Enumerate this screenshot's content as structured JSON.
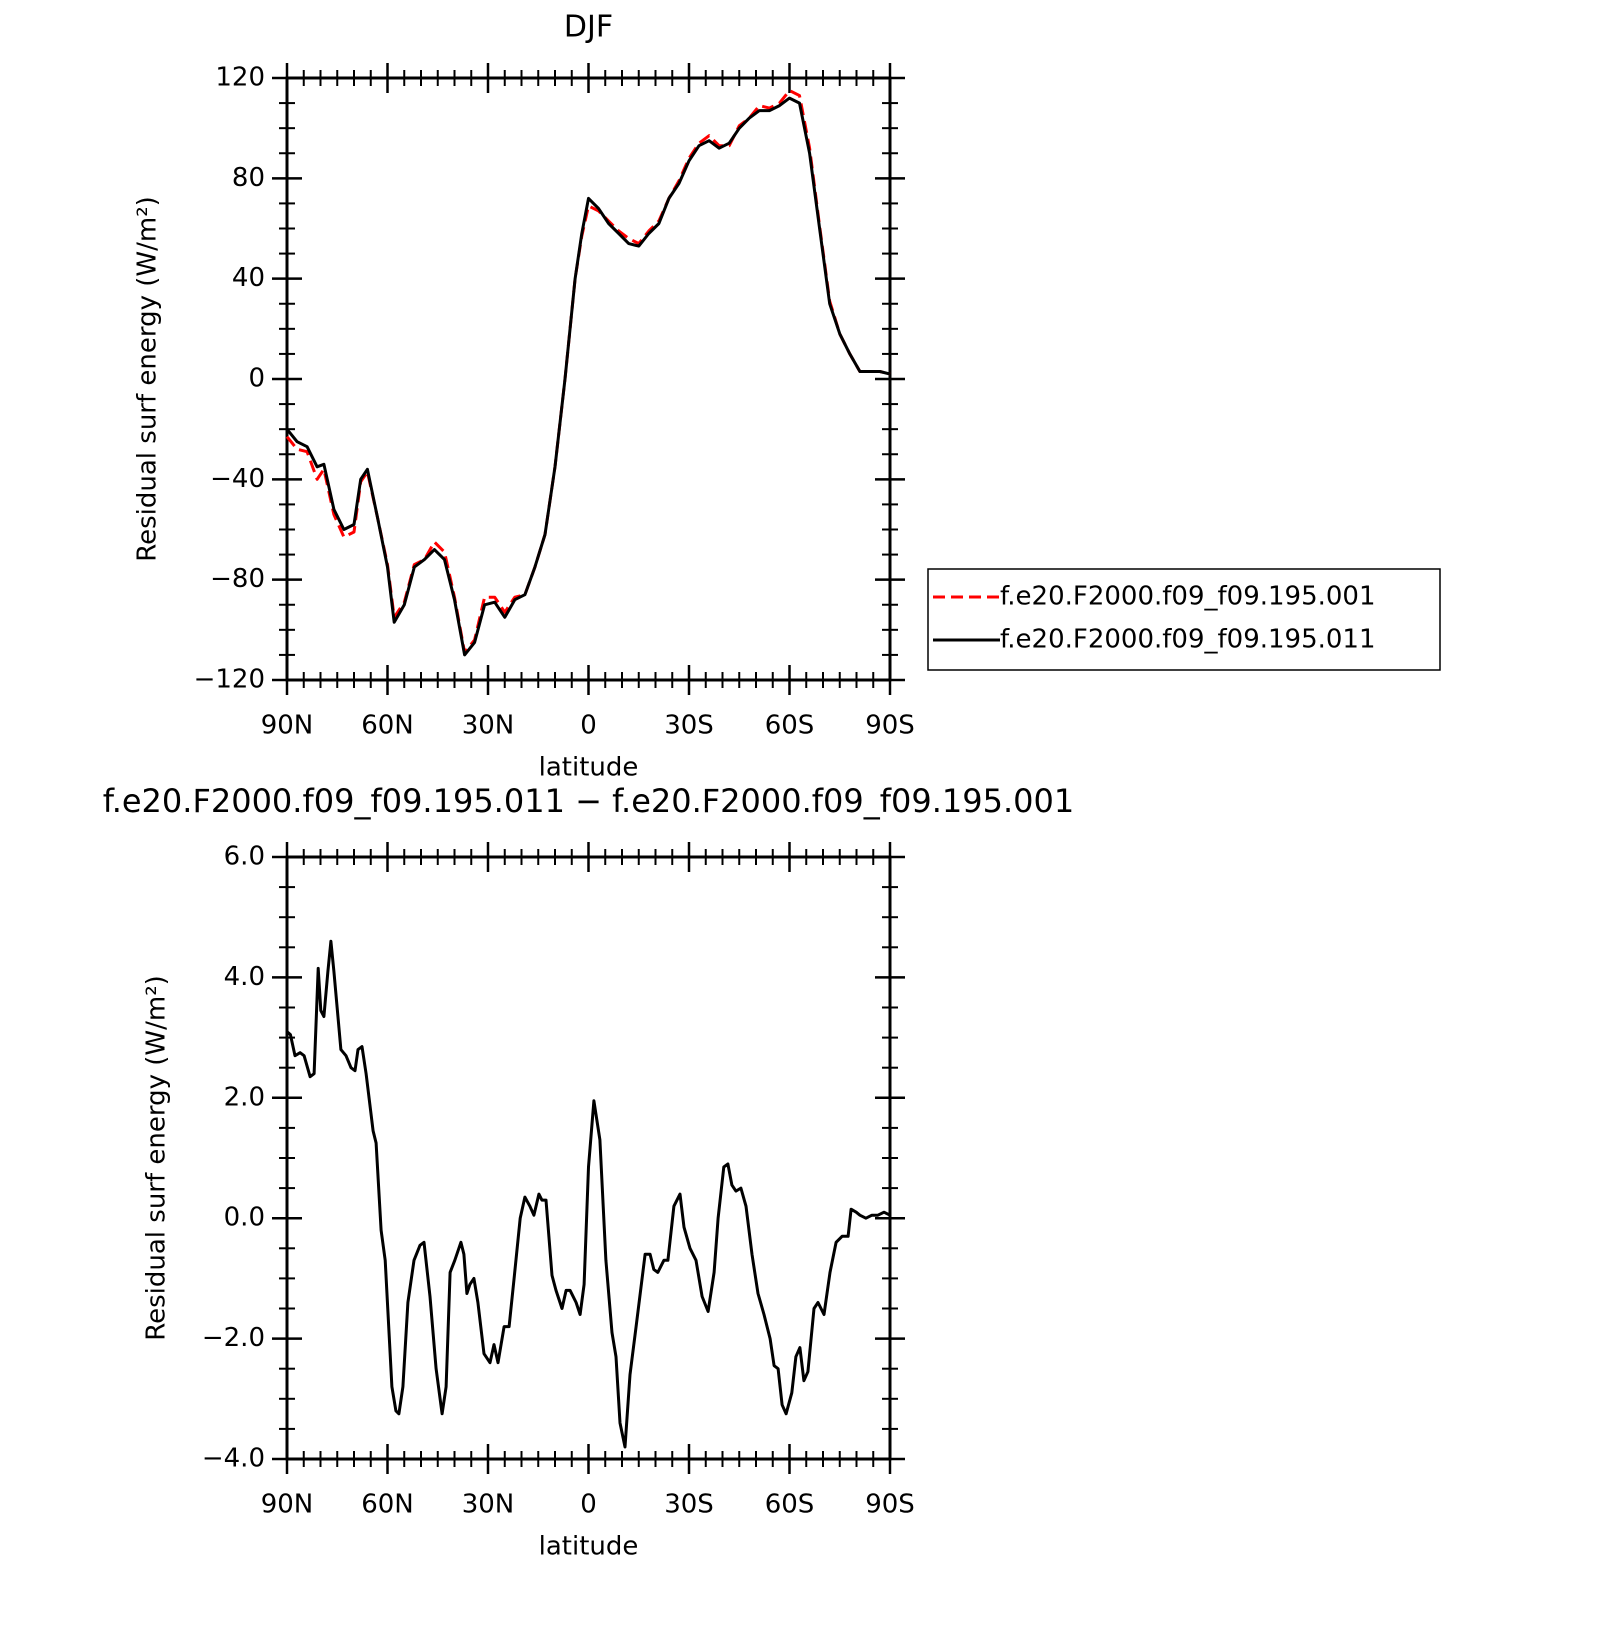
{
  "chart_data": [
    {
      "type": "line",
      "title": "DJF",
      "xlabel": "latitude",
      "ylabel": "Residual surf energy (W/m²)",
      "x": [
        90,
        87,
        84,
        81,
        79,
        76,
        73,
        70,
        68,
        66,
        63,
        60,
        58,
        55,
        52,
        49,
        46,
        43,
        40,
        37,
        34,
        31,
        28,
        25,
        22,
        19,
        16,
        13,
        10,
        7,
        4,
        2,
        0,
        -3,
        -6,
        -9,
        -12,
        -15,
        -18,
        -21,
        -24,
        -27,
        -30,
        -33,
        -36,
        -39,
        -42,
        -45,
        -48,
        -51,
        -54,
        -57,
        -60,
        -63,
        -66,
        -69,
        -72,
        -75,
        -78,
        -81,
        -84,
        -87,
        -90
      ],
      "series": [
        {
          "name": "f.e20.F2000.f09_f09.195.001",
          "color": "#ff0000",
          "dash": "dashed",
          "values": [
            -23,
            -28,
            -29,
            -40,
            -36,
            -54,
            -63,
            -61,
            -41,
            -37,
            -55,
            -74,
            -95,
            -89,
            -74,
            -72,
            -65,
            -69,
            -87,
            -109,
            -104,
            -87,
            -87,
            -93,
            -87,
            -86,
            -75,
            -62,
            -35,
            0,
            40,
            57,
            69,
            67,
            63,
            59,
            56,
            54,
            59,
            63,
            72,
            79,
            88,
            94,
            97,
            93,
            93,
            101,
            104,
            109,
            108,
            110,
            115,
            113,
            92,
            61,
            31,
            18,
            10,
            3,
            3,
            3,
            2
          ]
        },
        {
          "name": "f.e20.F2000.f09_f09.195.011",
          "color": "#000000",
          "dash": "solid",
          "values": [
            -20,
            -25,
            -27,
            -35,
            -34,
            -52,
            -60,
            -58,
            -40,
            -36,
            -55,
            -75,
            -97,
            -90,
            -75,
            -72,
            -68,
            -72,
            -88,
            -110,
            -105,
            -90,
            -89,
            -95,
            -88,
            -86,
            -75,
            -62,
            -35,
            0,
            40,
            58,
            72,
            68,
            62,
            58,
            54,
            53,
            58,
            62,
            72,
            78,
            87,
            93,
            95,
            92,
            94,
            100,
            104,
            107,
            107,
            109,
            112,
            110,
            90,
            60,
            30,
            18,
            10,
            3,
            3,
            3,
            2
          ]
        }
      ],
      "xlim": [
        90,
        -90
      ],
      "xticks": [
        {
          "value": 90,
          "label": "90N"
        },
        {
          "value": 60,
          "label": "60N"
        },
        {
          "value": 30,
          "label": "30N"
        },
        0,
        {
          "value": -30,
          "label": "30S"
        },
        {
          "value": -60,
          "label": "60S"
        },
        {
          "value": -90,
          "label": "90S"
        }
      ],
      "ylim": [
        -120,
        120
      ],
      "yticks": [
        120,
        80,
        40,
        0,
        {
          "value": -40,
          "label": "−40"
        },
        {
          "value": -80,
          "label": "−80"
        },
        {
          "value": -120,
          "label": "−120"
        }
      ],
      "legend": "outside-right"
    },
    {
      "type": "line",
      "title": "f.e20.F2000.f09_f09.195.011 − f.e20.F2000.f09_f09.195.001",
      "xlabel": "latitude",
      "ylabel": "Residual surf energy (W/m²)",
      "x": [
        90,
        89,
        87.6,
        86.1,
        84.9,
        83.1,
        81.9,
        80.7,
        79.9,
        79,
        77.8,
        76.9,
        76,
        73.9,
        72.4,
        70.9,
        69.7,
        68.8,
        67.6,
        66.4,
        64.3,
        63.4,
        61.9,
        60.7,
        58.7,
        57.5,
        56.6,
        55.4,
        53.9,
        52.1,
        50.3,
        49.1,
        47.3,
        45.5,
        43.7,
        42.5,
        41.3,
        39.9,
        38.1,
        37.2,
        36.3,
        35.4,
        34.2,
        33,
        31.2,
        29.4,
        28.2,
        27,
        25.2,
        23.7,
        22.2,
        20.4,
        19,
        17.5,
        16.3,
        14.8,
        13.9,
        12.7,
        10.9,
        9.7,
        7.9,
        6.7,
        5.5,
        3.7,
        2.5,
        1.3,
        0,
        -1.6,
        -3.4,
        -5.2,
        -7,
        -8.2,
        -9.4,
        -10.9,
        -12.4,
        -14.2,
        -16.9,
        -18.4,
        -19.5,
        -20.7,
        -22.5,
        -23.7,
        -25.5,
        -27.3,
        -28.5,
        -30.3,
        -32.1,
        -33.9,
        -35.7,
        -37.5,
        -38.7,
        -40.4,
        -41.6,
        -42.8,
        -44,
        -45.5,
        -47,
        -48.8,
        -50.6,
        -52.4,
        -54.2,
        -55.4,
        -56.6,
        -57.8,
        -59,
        -60.7,
        -61.9,
        -63.1,
        -64.3,
        -65.5,
        -67.3,
        -68.5,
        -70.3,
        -72.1,
        -73.9,
        -75.7,
        -77.5,
        -78.4,
        -79.9,
        -81,
        -82.8,
        -84.6,
        -86.4,
        -88.2,
        -90
      ],
      "values": [
        3.1,
        3.05,
        2.7,
        2.75,
        2.7,
        2.35,
        2.4,
        4.15,
        3.45,
        3.35,
        4.1,
        4.6,
        4.1,
        2.8,
        2.7,
        2.5,
        2.45,
        2.8,
        2.85,
        2.4,
        1.45,
        1.25,
        -0.2,
        -0.7,
        -2.8,
        -3.2,
        -3.25,
        -2.8,
        -1.4,
        -0.7,
        -0.45,
        -0.4,
        -1.3,
        -2.5,
        -3.25,
        -2.8,
        -0.9,
        -0.7,
        -0.4,
        -0.6,
        -1.25,
        -1.1,
        -1.0,
        -1.4,
        -2.25,
        -2.4,
        -2.1,
        -2.4,
        -1.8,
        -1.8,
        -1.0,
        0.0,
        0.35,
        0.2,
        0.05,
        0.4,
        0.3,
        0.3,
        -0.95,
        -1.2,
        -1.5,
        -1.2,
        -1.2,
        -1.4,
        -1.6,
        -1.1,
        0.85,
        1.95,
        1.3,
        -0.7,
        -1.9,
        -2.3,
        -3.4,
        -3.8,
        -2.6,
        -1.8,
        -0.6,
        -0.6,
        -0.85,
        -0.9,
        -0.7,
        -0.7,
        0.2,
        0.4,
        -0.15,
        -0.5,
        -0.7,
        -1.3,
        -1.55,
        -0.9,
        0.0,
        0.85,
        0.9,
        0.55,
        0.45,
        0.5,
        0.2,
        -0.6,
        -1.25,
        -1.6,
        -2.0,
        -2.45,
        -2.5,
        -3.1,
        -3.25,
        -2.9,
        -2.3,
        -2.15,
        -2.7,
        -2.55,
        -1.5,
        -1.4,
        -1.6,
        -0.9,
        -0.4,
        -0.3,
        -0.3,
        0.15,
        0.1,
        0.05,
        0.0,
        0.05,
        0.05,
        0.1,
        0.05
      ],
      "color": "#000000",
      "xlim": [
        90,
        -90
      ],
      "xticks": [
        {
          "value": 90,
          "label": "90N"
        },
        {
          "value": 60,
          "label": "60N"
        },
        {
          "value": 30,
          "label": "30N"
        },
        0,
        {
          "value": -30,
          "label": "30S"
        },
        {
          "value": -60,
          "label": "60S"
        },
        {
          "value": -90,
          "label": "90S"
        }
      ],
      "ylim": [
        -4,
        6
      ],
      "yticks": [
        {
          "value": 6,
          "label": "6.0"
        },
        {
          "value": 4,
          "label": "4.0"
        },
        {
          "value": 2,
          "label": "2.0"
        },
        {
          "value": 0,
          "label": "0.0"
        },
        {
          "value": -2,
          "label": "−2.0"
        },
        {
          "value": -4,
          "label": "−4.0"
        }
      ]
    }
  ]
}
